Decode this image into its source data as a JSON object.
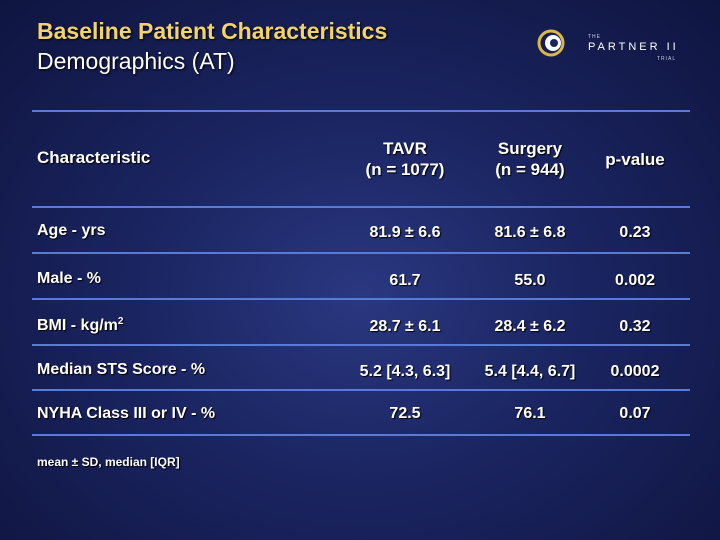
{
  "slide": {
    "title": "Baseline Patient Characteristics",
    "subtitle": "Demographics (AT)",
    "footnote": "mean ± SD, median [IQR]"
  },
  "logo": {
    "the": "THE",
    "name": "PARTNER II",
    "trial": "TRIAL"
  },
  "table": {
    "headers": {
      "characteristic": "Characteristic",
      "tavr_line1": "TAVR",
      "tavr_line2": "(n = 1077)",
      "surgery_line1": "Surgery",
      "surgery_line2": "(n = 944)",
      "pvalue": "p-value"
    },
    "rows": [
      {
        "label": "Age - yrs",
        "tavr": "81.9 ± 6.6",
        "surgery": "81.6 ± 6.8",
        "p": "0.23"
      },
      {
        "label": "Male - %",
        "tavr": "61.7",
        "surgery": "55.0",
        "p": "0.002"
      },
      {
        "label": "BMI - kg/m",
        "label_sup": "2",
        "tavr": "28.7 ± 6.1",
        "surgery": "28.4 ± 6.2",
        "p": "0.32"
      },
      {
        "label": "Median STS Score - %",
        "tavr": "5.2 [4.3, 6.3]",
        "surgery": "5.4 [4.4, 6.7]",
        "p": "0.0002"
      },
      {
        "label": "NYHA Class III or IV - %",
        "tavr": "72.5",
        "surgery": "76.1",
        "p": "0.07"
      }
    ]
  },
  "colors": {
    "title": "#f3d36a",
    "rule": "#5a7ad8",
    "background": "#1a2460"
  }
}
